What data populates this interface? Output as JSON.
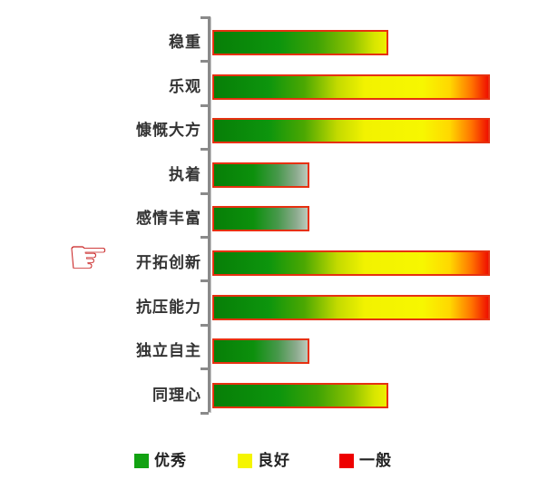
{
  "chart_data": {
    "type": "bar",
    "orientation": "horizontal",
    "title": "",
    "categories": [
      "稳重",
      "乐观",
      "慷慨大方",
      "执着",
      "感情丰富",
      "开拓创新",
      "抗压能力",
      "独立自主",
      "同理心"
    ],
    "values": [
      63,
      100,
      100,
      34,
      34,
      100,
      100,
      34,
      63
    ],
    "bar_levels": [
      "medium",
      "long",
      "long",
      "short",
      "short",
      "long",
      "long",
      "short",
      "medium"
    ],
    "xlim": [
      0,
      100
    ],
    "grid": false,
    "legend_position": "bottom",
    "legend": [
      {
        "label": "优秀",
        "color": "#12a212"
      },
      {
        "label": "良好",
        "color": "#f5f500"
      },
      {
        "label": "一般",
        "color": "#ee0000"
      }
    ],
    "highlighted_category": "开拓创新"
  },
  "icons": {
    "pointer_hand": "☞"
  },
  "colors": {
    "bar_border": "#e63111",
    "axis": "#8a8a8a",
    "label_text": "#333333",
    "gradient_start_green": "#077e07",
    "gradient_mid_yellow": "#f5f500",
    "gradient_end_red": "#f01000",
    "gradient_end_fade": "#bccabc"
  }
}
